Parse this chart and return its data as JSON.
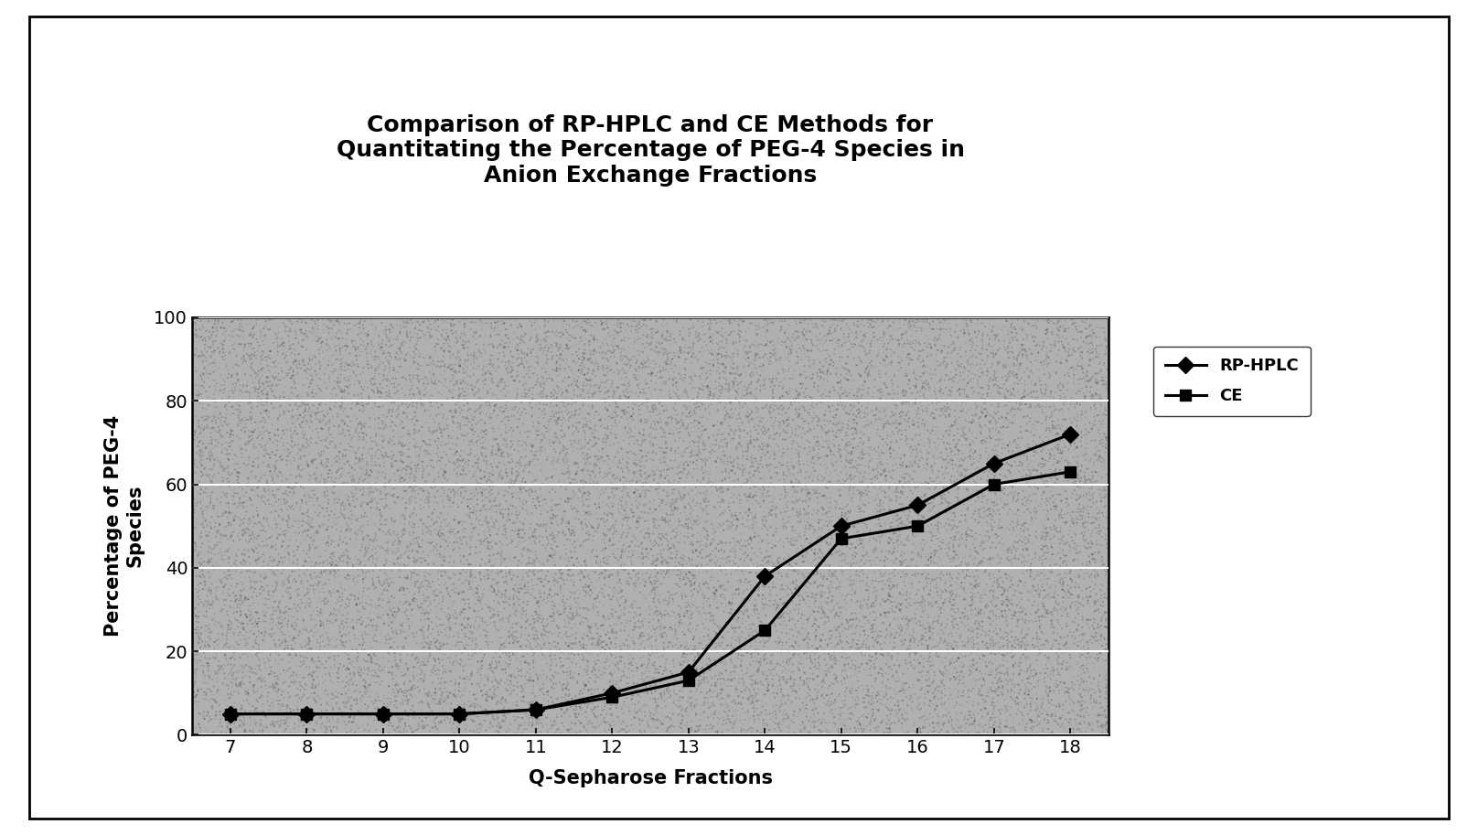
{
  "title_line1": "Comparison of RP-HPLC and CE Methods for",
  "title_line2": "Quantitating the Percentage of PEG-4 Species in",
  "title_line3": "Anion Exchange Fractions",
  "xlabel": "Q-Sepharose Fractions",
  "ylabel": "Percentage of PEG-4\nSpecies",
  "x_values": [
    7,
    8,
    9,
    10,
    11,
    12,
    13,
    14,
    15,
    16,
    17,
    18
  ],
  "rp_hplc_values": [
    5,
    5,
    5,
    5,
    6,
    10,
    15,
    38,
    50,
    55,
    65,
    72
  ],
  "ce_values": [
    5,
    5,
    5,
    5,
    6,
    9,
    13,
    25,
    47,
    50,
    60,
    63
  ],
  "ylim": [
    0,
    100
  ],
  "xlim": [
    6.5,
    18.5
  ],
  "yticks": [
    0,
    20,
    40,
    60,
    80,
    100
  ],
  "xticks": [
    7,
    8,
    9,
    10,
    11,
    12,
    13,
    14,
    15,
    16,
    17,
    18
  ],
  "title_fontsize": 18,
  "axis_label_fontsize": 15,
  "tick_fontsize": 14,
  "legend_fontsize": 13,
  "line_color": "#000000",
  "background_color": "#ffffff",
  "plot_bg_color": "#b0b0b0",
  "grid_color": "#ffffff",
  "outer_box_color": "#000000",
  "noise_density": 25000,
  "noise_alpha": 0.18
}
